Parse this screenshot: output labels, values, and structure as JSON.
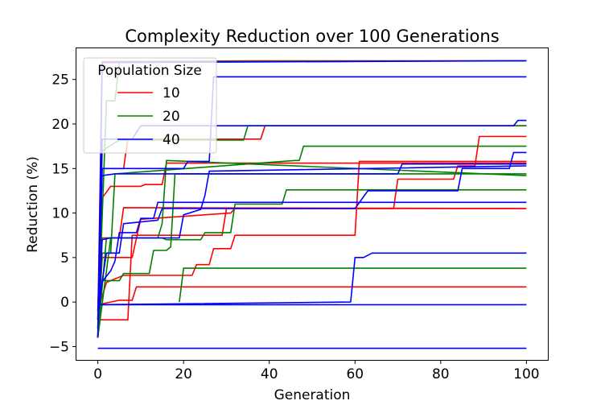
{
  "chart_data": {
    "type": "line",
    "title": "Complexity Reduction over 100 Generations",
    "xlabel": "Generation",
    "ylabel": "Reduction (%)",
    "xlim": [
      -5,
      105
    ],
    "ylim": [
      -6.5,
      28.5
    ],
    "xticks": [
      0,
      20,
      40,
      60,
      80,
      100
    ],
    "yticks": [
      -5,
      0,
      5,
      10,
      15,
      20,
      25
    ],
    "grid": false,
    "legend": {
      "title": "Population Size",
      "placement": "upper-left",
      "entries": [
        {
          "label": "10",
          "color": "#ff0000"
        },
        {
          "label": "20",
          "color": "#008000"
        },
        {
          "label": "40",
          "color": "#0000ff"
        }
      ]
    },
    "series": [
      {
        "group": "10",
        "color": "#ff0000",
        "points": [
          [
            0,
            -2
          ],
          [
            1,
            27
          ],
          [
            37,
            27.1
          ],
          [
            100,
            27.1
          ]
        ]
      },
      {
        "group": "10",
        "color": "#ff0000",
        "points": [
          [
            0,
            -4
          ],
          [
            1,
            11.7
          ],
          [
            3,
            13
          ],
          [
            10,
            13
          ],
          [
            11,
            13.2
          ],
          [
            15,
            13.2
          ],
          [
            16,
            15.6
          ],
          [
            100,
            15.6
          ]
        ]
      },
      {
        "group": "10",
        "color": "#ff0000",
        "points": [
          [
            0,
            -4
          ],
          [
            1,
            7.2
          ],
          [
            5,
            7.2
          ],
          [
            6,
            10.6
          ],
          [
            100,
            10.5
          ]
        ]
      },
      {
        "group": "10",
        "color": "#ff0000",
        "points": [
          [
            0,
            -2
          ],
          [
            7,
            -2
          ],
          [
            8,
            7.5
          ],
          [
            29,
            7.5
          ],
          [
            30,
            10.5
          ],
          [
            100,
            10.5
          ]
        ]
      },
      {
        "group": "10",
        "color": "#ff0000",
        "points": [
          [
            0,
            -0.3
          ],
          [
            5,
            0.2
          ],
          [
            8,
            0.2
          ],
          [
            9,
            1.7
          ],
          [
            100,
            1.7
          ]
        ]
      },
      {
        "group": "10",
        "color": "#ff0000",
        "points": [
          [
            0,
            -1
          ],
          [
            2,
            2.2
          ],
          [
            6,
            3
          ],
          [
            22,
            3
          ],
          [
            23,
            4.2
          ],
          [
            26,
            4.2
          ],
          [
            27,
            6
          ],
          [
            31,
            6
          ],
          [
            32,
            7.5
          ],
          [
            60,
            7.5
          ],
          [
            61,
            15.8
          ],
          [
            100,
            15.8
          ]
        ]
      },
      {
        "group": "10",
        "color": "#ff0000",
        "points": [
          [
            0,
            -4
          ],
          [
            1,
            15
          ],
          [
            6,
            15
          ],
          [
            7,
            18.3
          ],
          [
            38,
            18.3
          ],
          [
            39,
            19.8
          ],
          [
            100,
            19.8
          ]
        ]
      },
      {
        "group": "10",
        "color": "#ff0000",
        "points": [
          [
            0,
            -4
          ],
          [
            1,
            5
          ],
          [
            8,
            5
          ],
          [
            10,
            9.3
          ],
          [
            31,
            10
          ],
          [
            32,
            10.5
          ],
          [
            63,
            10.5
          ],
          [
            69,
            10.5
          ],
          [
            70,
            13.8
          ],
          [
            83,
            13.8
          ],
          [
            84,
            15.3
          ],
          [
            88,
            15.3
          ],
          [
            89,
            18.6
          ],
          [
            100,
            18.6
          ]
        ]
      },
      {
        "group": "20",
        "color": "#008000",
        "points": [
          [
            0,
            -4
          ],
          [
            2,
            22.6
          ],
          [
            4,
            22.6
          ],
          [
            5,
            27
          ],
          [
            100,
            27.1
          ]
        ]
      },
      {
        "group": "20",
        "color": "#008000",
        "points": [
          [
            0,
            -4
          ],
          [
            1,
            17
          ],
          [
            5,
            18.2
          ],
          [
            34,
            18.2
          ],
          [
            35,
            19.8
          ],
          [
            100,
            19.8
          ]
        ]
      },
      {
        "group": "20",
        "color": "#008000",
        "points": [
          [
            0,
            -4
          ],
          [
            1,
            5.5
          ],
          [
            3,
            5.5
          ],
          [
            4,
            14.4
          ],
          [
            46,
            15.9
          ],
          [
            47,
            15.9
          ],
          [
            48,
            17.5
          ],
          [
            100,
            17.5
          ]
        ]
      },
      {
        "group": "20",
        "color": "#008000",
        "points": [
          [
            0,
            -4
          ],
          [
            1,
            2.4
          ],
          [
            5,
            2.4
          ],
          [
            6,
            3.2
          ],
          [
            12,
            3.2
          ],
          [
            13,
            5.8
          ],
          [
            16,
            5.8
          ],
          [
            17,
            6.2
          ],
          [
            18,
            14.4
          ],
          [
            100,
            14.4
          ]
        ]
      },
      {
        "group": "20",
        "color": "#008000",
        "points": [
          [
            0,
            -4
          ],
          [
            2,
            7.2
          ],
          [
            9,
            7.2
          ],
          [
            14,
            7.2
          ],
          [
            15,
            8.8
          ],
          [
            16,
            15.9
          ],
          [
            100,
            14.2
          ]
        ]
      },
      {
        "group": "20",
        "color": "#008000",
        "points": [
          [
            0,
            -4
          ],
          [
            3,
            7.2
          ],
          [
            15,
            7.2
          ],
          [
            16,
            7
          ],
          [
            24,
            7
          ],
          [
            25,
            7.8
          ],
          [
            31,
            7.8
          ],
          [
            32,
            11
          ],
          [
            43,
            11
          ],
          [
            44,
            12.6
          ],
          [
            100,
            12.6
          ]
        ]
      },
      {
        "group": "20",
        "color": "#008000",
        "points": [
          [
            19,
            0
          ],
          [
            20,
            3.8
          ],
          [
            100,
            3.8
          ]
        ]
      },
      {
        "group": "40",
        "color": "#0000ff",
        "points": [
          [
            0,
            -5.2
          ],
          [
            100,
            -5.2
          ]
        ]
      },
      {
        "group": "40",
        "color": "#0000ff",
        "points": [
          [
            0,
            -0.3
          ],
          [
            100,
            -0.3
          ]
        ]
      },
      {
        "group": "40",
        "color": "#0000ff",
        "points": [
          [
            0,
            -0.3
          ],
          [
            59,
            0
          ],
          [
            60,
            5
          ],
          [
            62,
            5
          ],
          [
            64,
            5.5
          ],
          [
            100,
            5.5
          ]
        ]
      },
      {
        "group": "40",
        "color": "#0000ff",
        "points": [
          [
            0,
            -4
          ],
          [
            1,
            26.9
          ],
          [
            100,
            27.1
          ]
        ]
      },
      {
        "group": "40",
        "color": "#0000ff",
        "points": [
          [
            0,
            -2
          ],
          [
            1,
            18.3
          ],
          [
            8,
            18.3
          ],
          [
            10,
            19.8
          ],
          [
            97,
            19.8
          ],
          [
            98,
            20.4
          ],
          [
            100,
            20.4
          ]
        ]
      },
      {
        "group": "40",
        "color": "#0000ff",
        "points": [
          [
            0,
            -1
          ],
          [
            1,
            14.2
          ],
          [
            4,
            14.4
          ],
          [
            70,
            14.4
          ],
          [
            71,
            15.5
          ],
          [
            100,
            15.5
          ]
        ]
      },
      {
        "group": "40",
        "color": "#0000ff",
        "points": [
          [
            0,
            -3
          ],
          [
            1,
            7
          ],
          [
            3,
            7.2
          ],
          [
            19,
            7.2
          ],
          [
            20,
            9.8
          ],
          [
            24,
            10.4
          ],
          [
            25,
            12
          ],
          [
            26,
            14.7
          ],
          [
            100,
            15.3
          ]
        ]
      },
      {
        "group": "40",
        "color": "#0000ff",
        "points": [
          [
            0,
            -1
          ],
          [
            2,
            5.5
          ],
          [
            5,
            5.5
          ],
          [
            6,
            8.8
          ],
          [
            14,
            9.2
          ],
          [
            15,
            10.5
          ],
          [
            60,
            10.5
          ],
          [
            63,
            12.5
          ],
          [
            84,
            12.5
          ],
          [
            85,
            15
          ],
          [
            96,
            15
          ],
          [
            97,
            16.8
          ],
          [
            100,
            16.8
          ]
        ]
      },
      {
        "group": "40",
        "color": "#0000ff",
        "points": [
          [
            0,
            -2
          ],
          [
            1,
            2.3
          ],
          [
            3,
            3.5
          ],
          [
            4,
            4.6
          ],
          [
            5,
            7.8
          ],
          [
            9,
            7.8
          ],
          [
            10,
            9.4
          ],
          [
            13,
            9.4
          ],
          [
            14,
            11.2
          ],
          [
            100,
            11.2
          ]
        ]
      },
      {
        "group": "40",
        "color": "#0000ff",
        "points": [
          [
            0,
            -3
          ],
          [
            1,
            15
          ],
          [
            20,
            15
          ],
          [
            21,
            15.8
          ],
          [
            26,
            15.8
          ],
          [
            27,
            25.3
          ],
          [
            100,
            25.3
          ]
        ]
      }
    ]
  }
}
